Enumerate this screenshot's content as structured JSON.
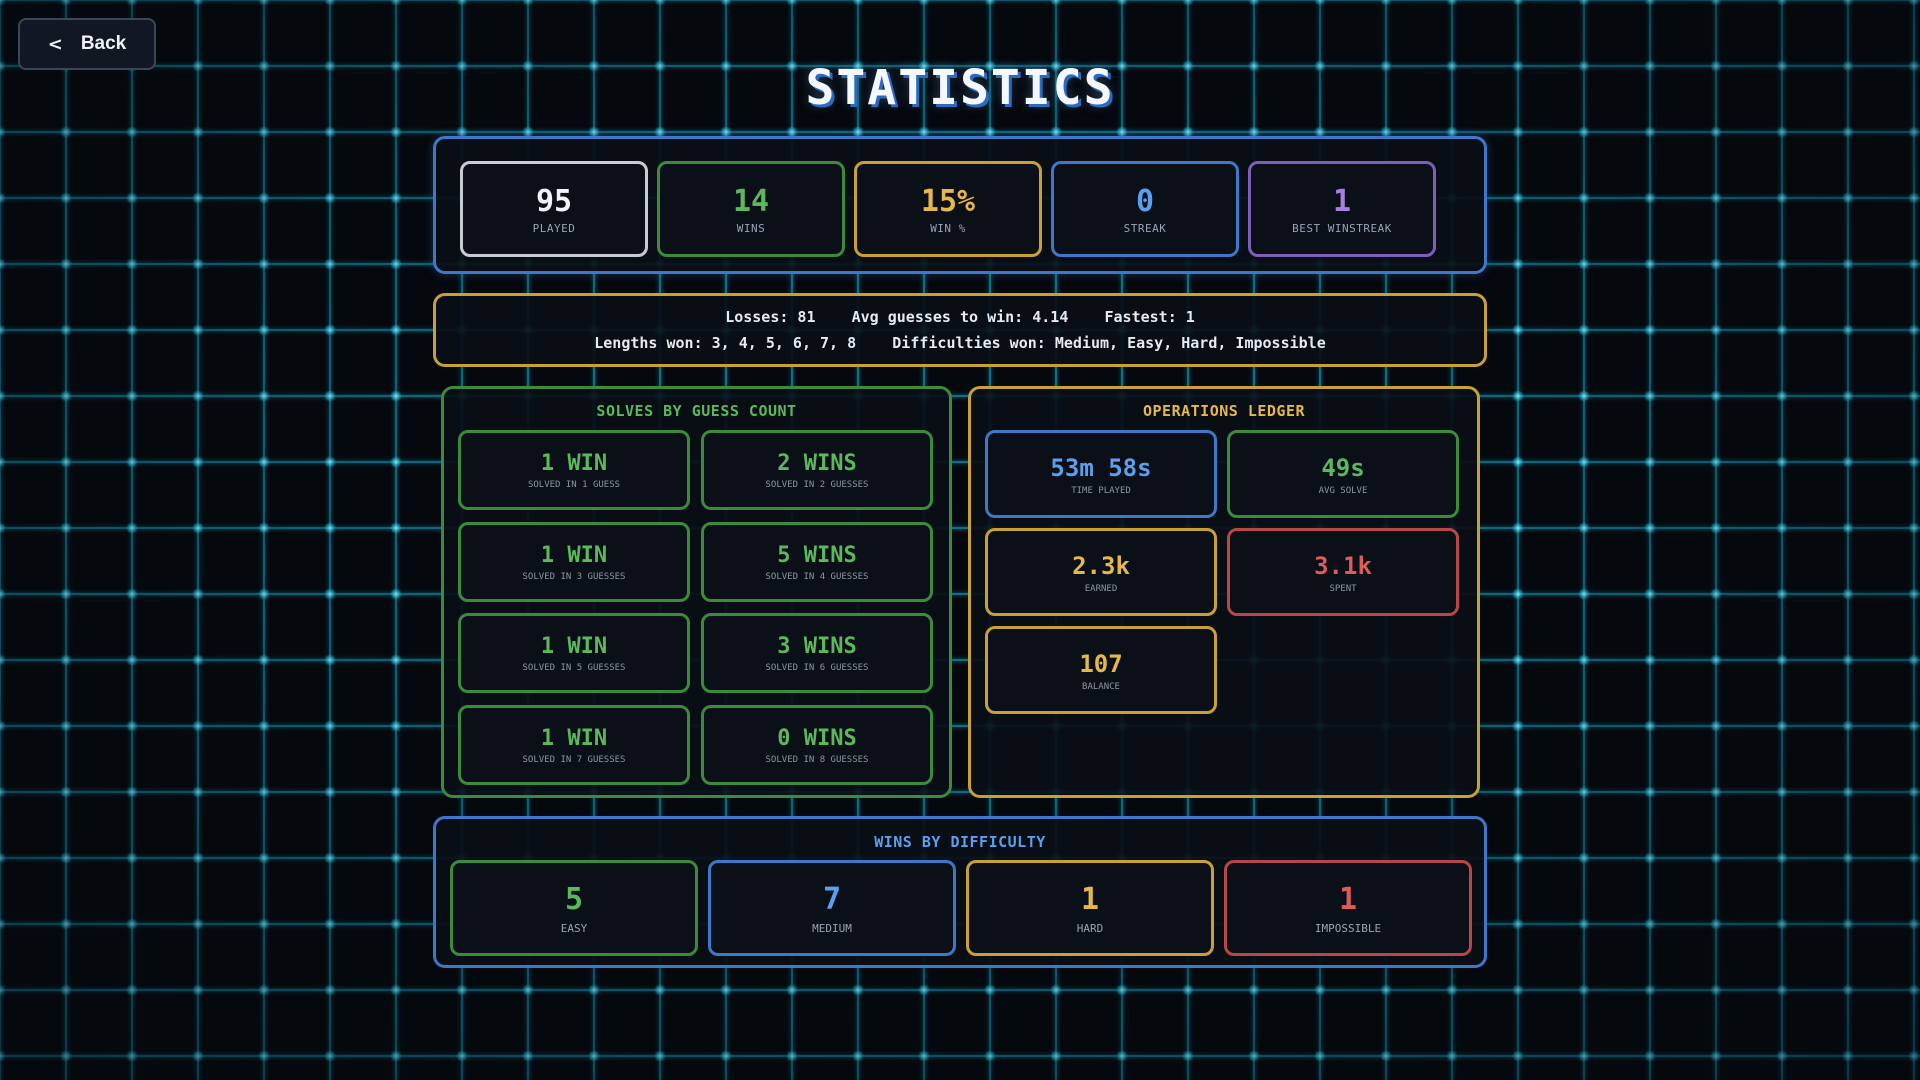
{
  "back_button": {
    "icon": "chevron-left-icon",
    "chevron": "<",
    "label": "Back"
  },
  "title": "STATISTICS",
  "colors": {
    "white": "#f0f3f7",
    "green": "#5cb85c",
    "gold": "#e6b84a",
    "blue": "#5aa0f0",
    "purple": "#a880e0",
    "red": "#e05a5a",
    "border_white": "#c8ccd2",
    "border_green": "#3c8a3c",
    "border_gold": "#c9a033",
    "border_blue": "#3f78c9",
    "border_purple": "#7e5fb8",
    "border_red": "#b84848"
  },
  "top_stats": [
    {
      "value": "95",
      "label": "PLAYED"
    },
    {
      "value": "14",
      "label": "WINS"
    },
    {
      "value": "15%",
      "label": "WIN %"
    },
    {
      "value": "0",
      "label": "STREAK"
    },
    {
      "value": "1",
      "label": "BEST WINSTREAK"
    }
  ],
  "summary": {
    "losses": "Losses: 81",
    "avg_guesses": "Avg guesses to win: 4.14",
    "fastest": "Fastest: 1",
    "lengths_won": "Lengths won: 3, 4, 5, 6, 7, 8",
    "difficulties_won": "Difficulties won: Medium, Easy, Hard, Impossible"
  },
  "guess_panel": {
    "heading": "SOLVES BY GUESS COUNT",
    "cards": [
      {
        "value": "1 WIN",
        "label": "SOLVED IN 1 GUESS"
      },
      {
        "value": "2 WINS",
        "label": "SOLVED IN 2 GUESSES"
      },
      {
        "value": "1 WIN",
        "label": "SOLVED IN 3 GUESSES"
      },
      {
        "value": "5 WINS",
        "label": "SOLVED IN 4 GUESSES"
      },
      {
        "value": "1 WIN",
        "label": "SOLVED IN 5 GUESSES"
      },
      {
        "value": "3 WINS",
        "label": "SOLVED IN 6 GUESSES"
      },
      {
        "value": "1 WIN",
        "label": "SOLVED IN 7 GUESSES"
      },
      {
        "value": "0 WINS",
        "label": "SOLVED IN 8 GUESSES"
      }
    ]
  },
  "ledger_panel": {
    "heading": "OPERATIONS LEDGER",
    "cards": [
      {
        "value": "53m 58s",
        "label": "TIME PLAYED"
      },
      {
        "value": "49s",
        "label": "AVG SOLVE"
      },
      {
        "value": "2.3k",
        "label": "EARNED"
      },
      {
        "value": "3.1k",
        "label": "SPENT"
      },
      {
        "value": "107",
        "label": "BALANCE"
      }
    ]
  },
  "difficulty_panel": {
    "heading": "WINS BY DIFFICULTY",
    "cards": [
      {
        "value": "5",
        "label": "EASY"
      },
      {
        "value": "7",
        "label": "MEDIUM"
      },
      {
        "value": "1",
        "label": "HARD"
      },
      {
        "value": "1",
        "label": "IMPOSSIBLE"
      }
    ]
  }
}
